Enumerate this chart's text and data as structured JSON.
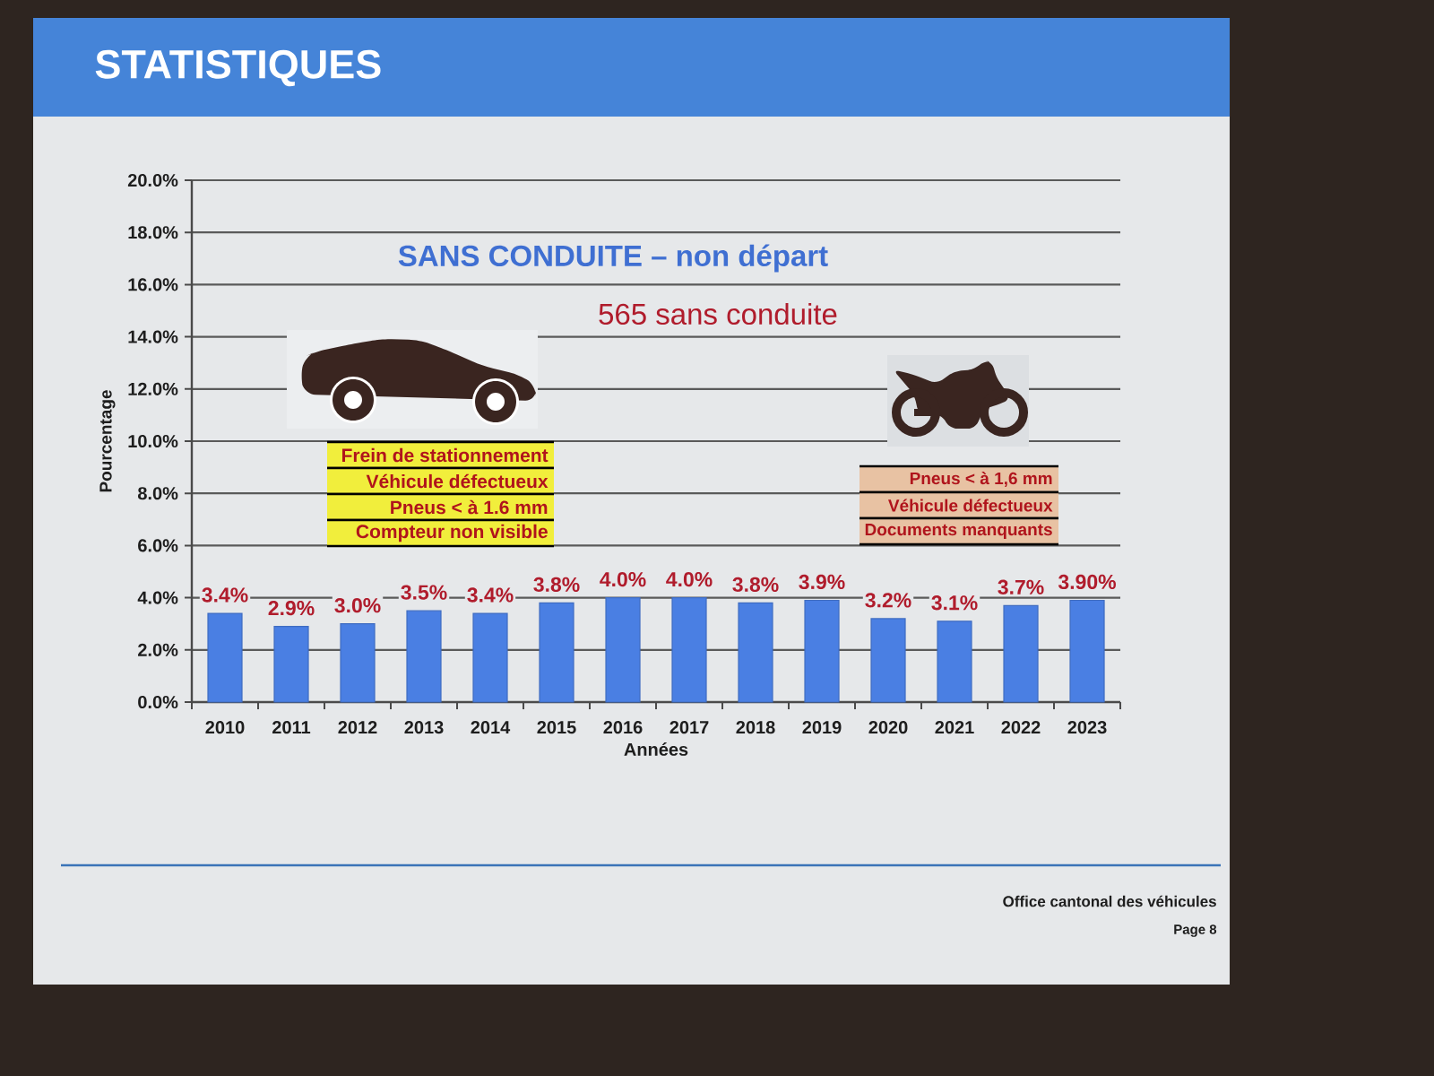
{
  "chart_data": {
    "type": "bar",
    "title": "STATISTIQUES",
    "subtitle": "SANS CONDUITE – non départ",
    "xlabel": "Années",
    "ylabel": "Pourcentage",
    "categories": [
      "2010",
      "2011",
      "2012",
      "2013",
      "2014",
      "2015",
      "2016",
      "2017",
      "2018",
      "2019",
      "2020",
      "2021",
      "2022",
      "2023"
    ],
    "values": [
      3.4,
      2.9,
      3.0,
      3.5,
      3.4,
      3.8,
      4.0,
      4.0,
      3.8,
      3.9,
      3.2,
      3.1,
      3.7,
      3.9
    ],
    "value_labels": [
      "3.4%",
      "2.9%",
      "3.0%",
      "3.5%",
      "3.4%",
      "3.8%",
      "4.0%",
      "4.0%",
      "3.8%",
      "3.9%",
      "3.2%",
      "3.1%",
      "3.7%",
      "3.90%"
    ],
    "color": "#4a7fe3",
    "ylim": [
      0,
      20
    ],
    "yticks": [
      {
        "value": 0,
        "label": "0.0%"
      },
      {
        "value": 2,
        "label": "2.0%"
      },
      {
        "value": 4,
        "label": "4.0%"
      },
      {
        "value": 6,
        "label": "6.0%"
      },
      {
        "value": 8,
        "label": "8.0%"
      },
      {
        "value": 10,
        "label": "10.0%"
      },
      {
        "value": 12,
        "label": "12.0%"
      },
      {
        "value": 14,
        "label": "14.0%"
      },
      {
        "value": 16,
        "label": "16.0%"
      },
      {
        "value": 18,
        "label": "18.0%"
      },
      {
        "value": 20,
        "label": "20.0%"
      }
    ],
    "grid": "y",
    "annotations": [
      "565 sans conduite",
      "Frein de stationnement",
      "Véhicule défectueux",
      "Pneus < à 1.6 mm",
      "Compteur non visible",
      "Pneus < à 1,6 mm",
      "Véhicule défectueux",
      "Documents manquants",
      "Office cantonal des véhicules",
      "Page 8"
    ]
  }
}
